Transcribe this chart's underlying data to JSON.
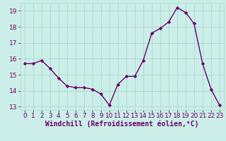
{
  "x": [
    0,
    1,
    2,
    3,
    4,
    5,
    6,
    7,
    8,
    9,
    10,
    11,
    12,
    13,
    14,
    15,
    16,
    17,
    18,
    19,
    20,
    21,
    22,
    23
  ],
  "y": [
    15.7,
    15.7,
    15.9,
    15.4,
    14.8,
    14.3,
    14.2,
    14.2,
    14.1,
    13.8,
    13.1,
    14.4,
    14.9,
    14.9,
    15.9,
    17.6,
    17.9,
    18.3,
    19.2,
    18.9,
    18.2,
    15.7,
    14.1,
    13.1
  ],
  "line_color": "#6a006a",
  "marker": "D",
  "marker_size": 2.2,
  "bg_color": "#cceee8",
  "grid_color": "#aaddcc",
  "xlabel": "Windchill (Refroidissement éolien,°C)",
  "ylim": [
    12.8,
    19.5
  ],
  "xlim": [
    -0.5,
    23.5
  ],
  "yticks": [
    13,
    14,
    15,
    16,
    17,
    18,
    19
  ],
  "xticks": [
    0,
    1,
    2,
    3,
    4,
    5,
    6,
    7,
    8,
    9,
    10,
    11,
    12,
    13,
    14,
    15,
    16,
    17,
    18,
    19,
    20,
    21,
    22,
    23
  ],
  "tick_color": "#6a006a",
  "tick_fontsize": 6.5,
  "xlabel_fontsize": 7.0,
  "line_width": 1.0
}
